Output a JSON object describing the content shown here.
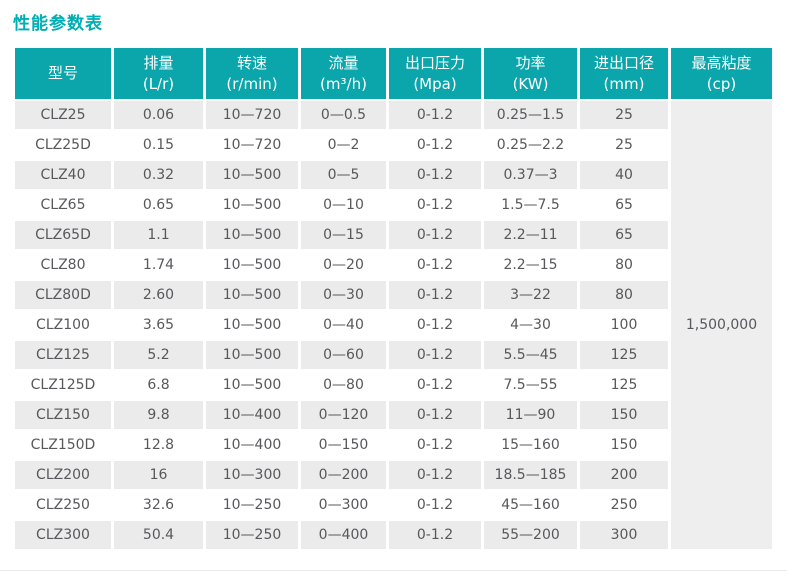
{
  "page": {
    "title": "性能参数表"
  },
  "colors": {
    "header_teal": "#0aa6ab",
    "title_teal": "#00aeb4",
    "row_alt_gray": "#ebebeb",
    "viscosity_bg": "#eeeeef",
    "body_text": "#57585b",
    "header_text": "#ffffff"
  },
  "table": {
    "columns": [
      {
        "label": "型号",
        "unit": ""
      },
      {
        "label": "排量",
        "unit": "(L/r)"
      },
      {
        "label": "转速",
        "unit": "(r/min)"
      },
      {
        "label": "流量",
        "unit": "(m³/h)"
      },
      {
        "label": "出口压力",
        "unit": "(Mpa)"
      },
      {
        "label": "功率",
        "unit": "(KW)"
      },
      {
        "label": "进出口径",
        "unit": "(mm)"
      },
      {
        "label": "最高粘度",
        "unit": "(cp)"
      }
    ],
    "max_viscosity_value": "1,500,000",
    "rows": [
      {
        "cells": [
          "CLZ25",
          "0.06",
          "10—720",
          "0—0.5",
          "0-1.2",
          "0.25—1.5",
          "25"
        ]
      },
      {
        "cells": [
          "CLZ25D",
          "0.15",
          "10—720",
          "0—2",
          "0-1.2",
          "0.25—2.2",
          "25"
        ]
      },
      {
        "cells": [
          "CLZ40",
          "0.32",
          "10—500",
          "0—5",
          "0-1.2",
          "0.37—3",
          "40"
        ]
      },
      {
        "cells": [
          "CLZ65",
          "0.65",
          "10—500",
          "0—10",
          "0-1.2",
          "1.5—7.5",
          "65"
        ]
      },
      {
        "cells": [
          "CLZ65D",
          "1.1",
          "10—500",
          "0—15",
          "0-1.2",
          "2.2—11",
          "65"
        ]
      },
      {
        "cells": [
          "CLZ80",
          "1.74",
          "10—500",
          "0—20",
          "0-1.2",
          "2.2—15",
          "80"
        ]
      },
      {
        "cells": [
          "CLZ80D",
          "2.60",
          "10—500",
          "0—30",
          "0-1.2",
          "3—22",
          "80"
        ]
      },
      {
        "cells": [
          "CLZ100",
          "3.65",
          "10—500",
          "0—40",
          "0-1.2",
          "4—30",
          "100"
        ]
      },
      {
        "cells": [
          "CLZ125",
          "5.2",
          "10—500",
          "0—60",
          "0-1.2",
          "5.5—45",
          "125"
        ]
      },
      {
        "cells": [
          "CLZ125D",
          "6.8",
          "10—500",
          "0—80",
          "0-1.2",
          "7.5—55",
          "125"
        ]
      },
      {
        "cells": [
          "CLZ150",
          "9.8",
          "10—400",
          "0—120",
          "0-1.2",
          "11—90",
          "150"
        ]
      },
      {
        "cells": [
          "CLZ150D",
          "12.8",
          "10—400",
          "0—150",
          "0-1.2",
          "15—160",
          "150"
        ]
      },
      {
        "cells": [
          "CLZ200",
          "16",
          "10—300",
          "0—200",
          "0-1.2",
          "18.5—185",
          "200"
        ]
      },
      {
        "cells": [
          "CLZ250",
          "32.6",
          "10—250",
          "0—300",
          "0-1.2",
          "45—160",
          "250"
        ]
      },
      {
        "cells": [
          "CLZ300",
          "50.4",
          "10—250",
          "0—400",
          "0-1.2",
          "55—200",
          "300"
        ]
      }
    ]
  }
}
